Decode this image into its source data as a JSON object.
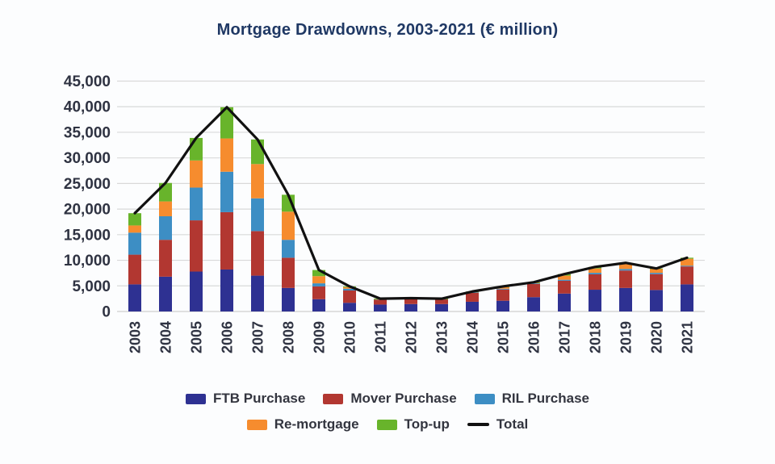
{
  "chart_data": {
    "type": "bar",
    "subtype": "stacked-bars-with-total-line",
    "title": "Mortgage Drawdowns, 2003-2021 (€ million)",
    "title_color": "#1f3864",
    "background_color": "#fcfdfe",
    "grid": true,
    "gridline_color": "#d9d9d9",
    "axis_text_color": "#2f3342",
    "legend_position": "bottom",
    "ylim": [
      0,
      45000
    ],
    "ytick_step": 5000,
    "ytick_labels": [
      "0",
      "5,000",
      "10,000",
      "15,000",
      "20,000",
      "25,000",
      "30,000",
      "35,000",
      "40,000",
      "45,000"
    ],
    "categories": [
      "2003",
      "2004",
      "2005",
      "2006",
      "2007",
      "2008",
      "2009",
      "2010",
      "2011",
      "2012",
      "2013",
      "2014",
      "2015",
      "2016",
      "2017",
      "2018",
      "2019",
      "2020",
      "2021"
    ],
    "series": [
      {
        "name": "FTB Purchase",
        "color": "#2e3192",
        "values": [
          5300,
          6800,
          7800,
          8200,
          7000,
          4600,
          2400,
          1700,
          1350,
          1450,
          1450,
          1900,
          2100,
          2800,
          3500,
          4250,
          4600,
          4200,
          5300
        ]
      },
      {
        "name": "Mover Purchase",
        "color": "#b23731",
        "values": [
          5800,
          7200,
          10000,
          11200,
          8700,
          5900,
          2500,
          2400,
          1000,
          1050,
          1000,
          1800,
          2200,
          2600,
          2500,
          3000,
          3400,
          3100,
          3500
        ]
      },
      {
        "name": "RIL Purchase",
        "color": "#3d8ec4",
        "values": [
          4300,
          4600,
          6400,
          7900,
          6400,
          3500,
          600,
          350,
          50,
          30,
          20,
          50,
          150,
          100,
          200,
          300,
          300,
          250,
          150
        ]
      },
      {
        "name": "Re-mortgage",
        "color": "#f68c2e",
        "values": [
          1400,
          2900,
          5300,
          6500,
          6700,
          5500,
          1400,
          300,
          50,
          40,
          20,
          100,
          300,
          150,
          800,
          850,
          1100,
          750,
          1350
        ]
      },
      {
        "name": "Top-up",
        "color": "#68b42b",
        "values": [
          2400,
          3600,
          4400,
          6100,
          4800,
          3300,
          1200,
          150,
          50,
          30,
          10,
          50,
          150,
          50,
          300,
          300,
          100,
          100,
          200
        ]
      }
    ],
    "line_series": {
      "name": "Total",
      "color": "#111111",
      "values": [
        19200,
        25100,
        33900,
        39900,
        33600,
        22800,
        8100,
        4900,
        2500,
        2600,
        2500,
        3900,
        4900,
        5700,
        7300,
        8700,
        9500,
        8400,
        10500
      ]
    }
  }
}
